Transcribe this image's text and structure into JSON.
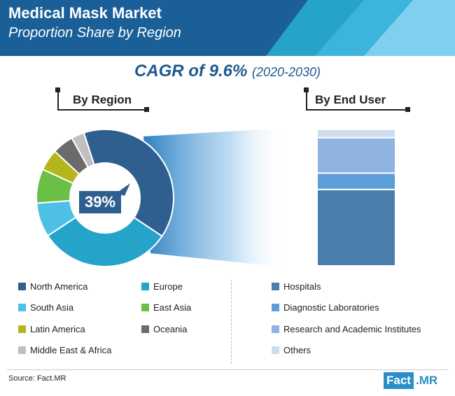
{
  "header": {
    "title": "Medical Mask Market",
    "subtitle": "Proportion Share by Region"
  },
  "cagr": {
    "text": "CAGR of 9.6%",
    "years": "(2020-2030)"
  },
  "section_labels": {
    "region": "By Region",
    "end_user": "By End User"
  },
  "source": "Source: Fact.MR",
  "logo": {
    "part1": "Fact",
    "part2": ".MR"
  },
  "chart_data": [
    {
      "type": "pie",
      "title": "By Region",
      "highlight_label": "39%",
      "slices": [
        {
          "name": "North America",
          "value": 39,
          "color": "#2e5f8f"
        },
        {
          "name": "Europe",
          "value": 31,
          "color": "#26a3c9"
        },
        {
          "name": "South Asia",
          "value": 8,
          "color": "#4ec0e6"
        },
        {
          "name": "East Asia",
          "value": 8,
          "color": "#6abf47"
        },
        {
          "name": "Latin America",
          "value": 5,
          "color": "#b5b51c"
        },
        {
          "name": "Oceania",
          "value": 5,
          "color": "#6b6b6b"
        },
        {
          "name": "Middle East & Africa",
          "value": 3,
          "color": "#c0c0c0"
        }
      ]
    },
    {
      "type": "bar",
      "title": "By End User",
      "stacked": true,
      "unit": "percent",
      "segments": [
        {
          "name": "Hospitals",
          "value": 56,
          "color": "#4a7fad"
        },
        {
          "name": "Diagnostic Laboratories",
          "value": 12,
          "color": "#5b9ed8"
        },
        {
          "name": "Research and Academic Institutes",
          "value": 26,
          "color": "#8fb4e0"
        },
        {
          "name": "Others",
          "value": 6,
          "color": "#cddcee"
        }
      ]
    }
  ],
  "colors": {
    "header_dark": "#1a5f98",
    "accent_blue": "#1e5a8e"
  }
}
